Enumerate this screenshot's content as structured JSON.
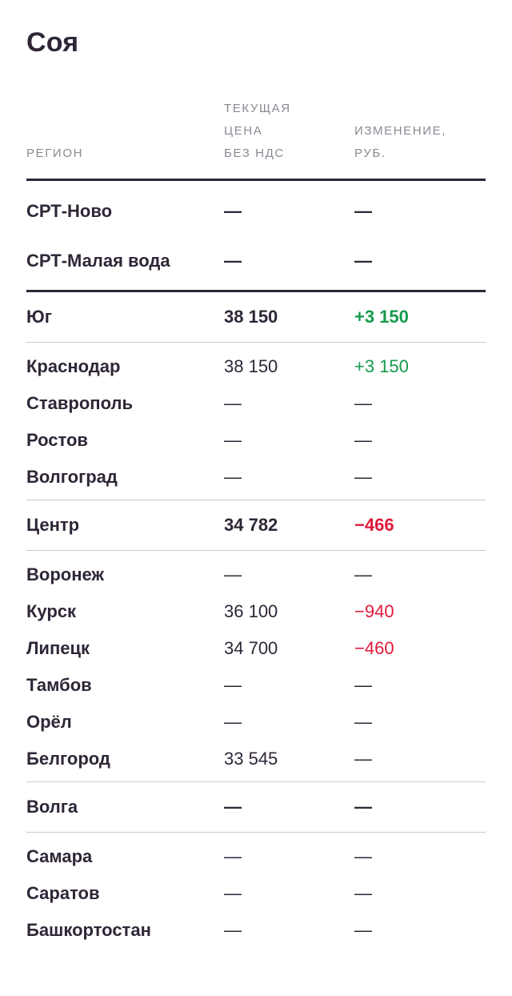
{
  "page": {
    "title": "Соя"
  },
  "table": {
    "headers": {
      "region": "РЕГИОН",
      "price": "ТЕКУЩАЯ\nЦЕНА\nБЕЗ НДС",
      "change": "ИЗМЕНЕНИЕ,\nРУБ."
    },
    "rows": [
      {
        "region": "СРТ-Ново",
        "price": "—",
        "change": "—",
        "style": "group",
        "change_color": "default",
        "divider_after": null
      },
      {
        "region": "СРТ-Малая вода",
        "price": "—",
        "change": "—",
        "style": "group",
        "change_color": "default",
        "divider_after": "thick"
      },
      {
        "region": "Юг",
        "price": "38 150",
        "change": "+3 150",
        "style": "group",
        "change_color": "green",
        "divider_after": "thin"
      },
      {
        "region": "Краснодар",
        "price": "38 150",
        "change": "+3 150",
        "style": "sub",
        "change_color": "green",
        "divider_after": null
      },
      {
        "region": "Ставрополь",
        "price": "—",
        "change": "—",
        "style": "sub",
        "change_color": "default",
        "divider_after": null
      },
      {
        "region": "Ростов",
        "price": "—",
        "change": "—",
        "style": "sub",
        "change_color": "default",
        "divider_after": null
      },
      {
        "region": "Волгоград",
        "price": "—",
        "change": "—",
        "style": "sub",
        "change_color": "default",
        "divider_after": "thin"
      },
      {
        "region": "Центр",
        "price": "34 782",
        "change": "−466",
        "style": "group",
        "change_color": "red",
        "divider_after": "thin"
      },
      {
        "region": "Воронеж",
        "price": "—",
        "change": "—",
        "style": "sub",
        "change_color": "default",
        "divider_after": null
      },
      {
        "region": "Курск",
        "price": "36 100",
        "change": "−940",
        "style": "sub",
        "change_color": "red",
        "divider_after": null
      },
      {
        "region": "Липецк",
        "price": "34 700",
        "change": "−460",
        "style": "sub",
        "change_color": "red",
        "divider_after": null
      },
      {
        "region": "Тамбов",
        "price": "—",
        "change": "—",
        "style": "sub",
        "change_color": "default",
        "divider_after": null
      },
      {
        "region": "Орёл",
        "price": "—",
        "change": "—",
        "style": "sub",
        "change_color": "default",
        "divider_after": null
      },
      {
        "region": "Белгород",
        "price": "33 545",
        "change": "—",
        "style": "sub",
        "change_color": "default",
        "divider_after": "thin"
      },
      {
        "region": "Волга",
        "price": "—",
        "change": "—",
        "style": "group",
        "change_color": "default",
        "divider_after": "thin"
      },
      {
        "region": "Самара",
        "price": "—",
        "change": "—",
        "style": "sub",
        "change_color": "default",
        "divider_after": null
      },
      {
        "region": "Саратов",
        "price": "—",
        "change": "—",
        "style": "sub",
        "change_color": "default",
        "divider_after": null
      },
      {
        "region": "Башкортостан",
        "price": "—",
        "change": "—",
        "style": "sub",
        "change_color": "default",
        "divider_after": null
      }
    ]
  },
  "colors": {
    "text_dark": "#2f2637",
    "header_gray": "#8d8894",
    "positive_green": "#159b4e",
    "negative_red": "#e01a3b",
    "divider_light": "#cac8cd",
    "background": "#ffffff"
  }
}
